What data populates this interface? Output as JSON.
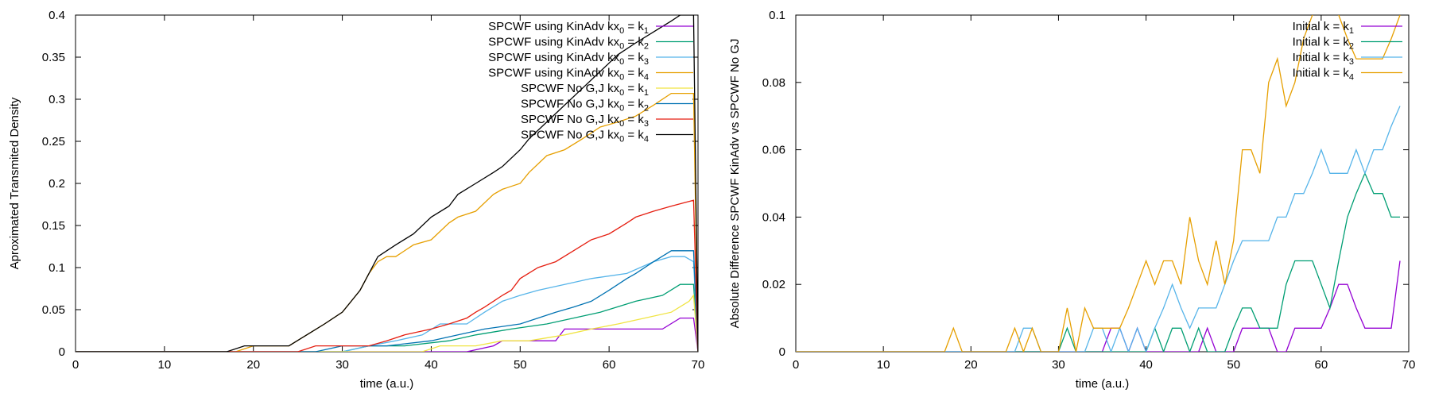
{
  "chart_data": [
    {
      "type": "line",
      "xlabel": "time (a.u.)",
      "ylabel": "Aproximated Transmited Density",
      "xlim": [
        0,
        70
      ],
      "ylim": [
        0,
        0.4
      ],
      "xticks": [
        0,
        10,
        20,
        30,
        40,
        50,
        60,
        70
      ],
      "yticks": [
        0,
        0.05,
        0.1,
        0.15,
        0.2,
        0.25,
        0.3,
        0.35,
        0.4
      ],
      "ytick_labels": [
        "0",
        "0.05",
        "0.1",
        "0.15",
        "0.2",
        "0.25",
        "0.3",
        "0.35",
        "0.4"
      ],
      "grid": false,
      "legend_position": "top-right",
      "series": [
        {
          "name": "SPCWF using KinAdv kx0 = k1",
          "label_main": "SPCWF using KinAdv kx",
          "label_sub1": "0",
          "label_mid": " = k",
          "label_sub2": "1",
          "color": "#9400d3",
          "x": [
            0,
            44,
            47,
            48,
            54,
            55,
            66,
            68,
            69.5,
            70
          ],
          "y": [
            0,
            0,
            0.007,
            0.013,
            0.013,
            0.027,
            0.027,
            0.04,
            0.04,
            0
          ]
        },
        {
          "name": "SPCWF using KinAdv kx0 = k2",
          "label_main": "SPCWF using KinAdv kx",
          "label_sub1": "0",
          "label_mid": " = k",
          "label_sub2": "2",
          "color": "#009e73",
          "x": [
            0,
            30,
            33,
            37,
            42,
            45,
            49,
            53,
            56,
            59,
            63,
            66,
            68,
            69.5,
            70
          ],
          "y": [
            0,
            0,
            0.007,
            0.007,
            0.013,
            0.02,
            0.027,
            0.033,
            0.04,
            0.047,
            0.06,
            0.067,
            0.08,
            0.08,
            0
          ]
        },
        {
          "name": "SPCWF using KinAdv kx0 = k3",
          "label_main": "SPCWF using KinAdv kx",
          "label_sub1": "0",
          "label_mid": " = k",
          "label_sub2": "3",
          "color": "#56b4e9",
          "x": [
            0,
            30,
            33,
            36,
            39,
            41,
            44,
            46,
            48,
            50,
            52,
            55,
            58,
            62,
            65,
            67,
            68.5,
            69.5,
            70
          ],
          "y": [
            0,
            0,
            0.007,
            0.013,
            0.02,
            0.033,
            0.033,
            0.047,
            0.06,
            0.067,
            0.073,
            0.08,
            0.087,
            0.093,
            0.107,
            0.113,
            0.113,
            0.107,
            0
          ]
        },
        {
          "name": "SPCWF using KinAdv kx0 = k4",
          "label_main": "SPCWF using KinAdv kx",
          "label_sub1": "0",
          "label_mid": " = k",
          "label_sub2": "4",
          "color": "#e69f00",
          "x": [
            0,
            18,
            20,
            24,
            26,
            28,
            30,
            31,
            32,
            33,
            34,
            35,
            36,
            38,
            40,
            42,
            43,
            45,
            47,
            48,
            50,
            51,
            53,
            55,
            57,
            59,
            61,
            63,
            65,
            67,
            69.5,
            70
          ],
          "y": [
            0,
            0,
            0.007,
            0.007,
            0.02,
            0.033,
            0.047,
            0.06,
            0.073,
            0.093,
            0.107,
            0.113,
            0.113,
            0.127,
            0.133,
            0.153,
            0.16,
            0.167,
            0.187,
            0.193,
            0.2,
            0.213,
            0.233,
            0.24,
            0.253,
            0.267,
            0.273,
            0.28,
            0.293,
            0.307,
            0.307,
            0
          ]
        },
        {
          "name": "SPCWF No G,J kx0 = k1",
          "label_main": "SPCWF No G,J kx",
          "label_sub1": "0",
          "label_mid": " = k",
          "label_sub2": "1",
          "color": "#f0e442",
          "x": [
            0,
            39,
            41,
            45,
            48,
            51,
            55,
            58,
            61,
            64,
            67,
            69,
            69.5,
            70
          ],
          "y": [
            0,
            0,
            0.007,
            0.007,
            0.013,
            0.013,
            0.02,
            0.027,
            0.033,
            0.04,
            0.047,
            0.06,
            0.067,
            0
          ]
        },
        {
          "name": "SPCWF No G,J kx0 = k2",
          "label_main": "SPCWF No G,J kx",
          "label_sub1": "0",
          "label_mid": " = k",
          "label_sub2": "2",
          "color": "#0072b2",
          "x": [
            0,
            27,
            30,
            35,
            40,
            43,
            46,
            50,
            52,
            54,
            56,
            58,
            60,
            62,
            63,
            65,
            67,
            69.5,
            70
          ],
          "y": [
            0,
            0,
            0.007,
            0.007,
            0.013,
            0.02,
            0.027,
            0.033,
            0.04,
            0.047,
            0.053,
            0.06,
            0.073,
            0.087,
            0.093,
            0.107,
            0.12,
            0.12,
            0
          ]
        },
        {
          "name": "SPCWF No G,J kx0 = k3",
          "label_main": "SPCWF No G,J kx",
          "label_sub1": "0",
          "label_mid": " = k",
          "label_sub2": "3",
          "color": "#e51e10",
          "x": [
            0,
            25,
            27,
            33,
            35,
            37,
            40,
            42,
            44,
            45,
            46,
            47,
            48,
            49,
            50,
            52,
            54,
            56,
            58,
            60,
            62,
            63,
            65,
            67,
            69.5,
            70
          ],
          "y": [
            0,
            0,
            0.007,
            0.007,
            0.013,
            0.02,
            0.027,
            0.033,
            0.04,
            0.047,
            0.053,
            0.06,
            0.067,
            0.073,
            0.087,
            0.1,
            0.107,
            0.12,
            0.133,
            0.14,
            0.153,
            0.16,
            0.167,
            0.173,
            0.18,
            0
          ]
        },
        {
          "name": "SPCWF No G,J kx0 = k4",
          "label_main": "SPCWF No G,J kx",
          "label_sub1": "0",
          "label_mid": " = k",
          "label_sub2": "4",
          "color": "#000000",
          "x": [
            0,
            17,
            19,
            24,
            26,
            28,
            30,
            31,
            32,
            33,
            34,
            35,
            36,
            38,
            40,
            42,
            43,
            45,
            47,
            48,
            50,
            51,
            53,
            55,
            57,
            59,
            61,
            63,
            65,
            67,
            68,
            69.5,
            70
          ],
          "y": [
            0,
            0,
            0.007,
            0.007,
            0.02,
            0.033,
            0.047,
            0.06,
            0.073,
            0.093,
            0.113,
            0.12,
            0.127,
            0.14,
            0.16,
            0.173,
            0.187,
            0.2,
            0.213,
            0.22,
            0.24,
            0.253,
            0.273,
            0.293,
            0.313,
            0.333,
            0.353,
            0.367,
            0.38,
            0.393,
            0.4,
            0.4,
            0
          ]
        }
      ]
    },
    {
      "type": "line",
      "xlabel": "time (a.u.)",
      "ylabel": "Absolute Difference SPCWF KinAdv vs SPCWF No GJ",
      "xlim": [
        0,
        70
      ],
      "ylim": [
        0,
        0.1
      ],
      "xticks": [
        0,
        10,
        20,
        30,
        40,
        50,
        60,
        70
      ],
      "yticks": [
        0,
        0.02,
        0.04,
        0.06,
        0.08,
        0.1
      ],
      "ytick_labels": [
        "0",
        "0.02",
        "0.04",
        "0.06",
        "0.08",
        "0.1"
      ],
      "grid": false,
      "legend_position": "top-right",
      "series": [
        {
          "name": "Initial k = k1",
          "label_main": "Initial k = k",
          "label_sub": "1",
          "color": "#9400d3",
          "x": [
            0,
            35,
            36,
            37,
            38,
            39,
            40,
            46,
            47,
            48,
            49,
            50,
            51,
            52,
            53,
            54,
            55,
            56,
            57,
            58,
            59,
            60,
            61,
            62,
            63,
            64,
            65,
            66,
            67,
            68,
            69
          ],
          "y": [
            0,
            0,
            0.007,
            0.007,
            0,
            0.007,
            0,
            0,
            0.007,
            0,
            0,
            0,
            0.007,
            0.007,
            0.007,
            0.007,
            0,
            0,
            0.007,
            0.007,
            0.007,
            0.007,
            0.013,
            0.02,
            0.02,
            0.013,
            0.007,
            0.007,
            0.007,
            0.007,
            0.027
          ]
        },
        {
          "name": "Initial k = k2",
          "label_main": "Initial k = k",
          "label_sub": "2",
          "color": "#009e73",
          "x": [
            0,
            30,
            31,
            32,
            33,
            40,
            41,
            42,
            43,
            44,
            45,
            46,
            47,
            48,
            49,
            50,
            51,
            52,
            53,
            54,
            55,
            56,
            57,
            58,
            59,
            60,
            61,
            62,
            63,
            64,
            65,
            66,
            67,
            68,
            69
          ],
          "y": [
            0,
            0,
            0.007,
            0,
            0,
            0,
            0.007,
            0,
            0.007,
            0.007,
            0,
            0.007,
            0,
            0,
            0,
            0.007,
            0.013,
            0.013,
            0.007,
            0.007,
            0.007,
            0.02,
            0.027,
            0.027,
            0.027,
            0.02,
            0.013,
            0.027,
            0.04,
            0.047,
            0.053,
            0.047,
            0.047,
            0.04,
            0.04
          ]
        },
        {
          "name": "Initial k = k3",
          "label_main": "Initial k = k",
          "label_sub": "3",
          "color": "#56b4e9",
          "x": [
            0,
            25,
            26,
            27,
            28,
            33,
            34,
            35,
            36,
            37,
            38,
            39,
            40,
            41,
            42,
            43,
            44,
            45,
            46,
            47,
            48,
            49,
            50,
            51,
            52,
            53,
            54,
            55,
            56,
            57,
            58,
            59,
            60,
            61,
            62,
            63,
            64,
            65,
            66,
            67,
            68,
            69
          ],
          "y": [
            0,
            0,
            0.007,
            0.007,
            0,
            0,
            0.007,
            0.007,
            0,
            0.007,
            0,
            0.007,
            0,
            0.007,
            0.013,
            0.02,
            0.013,
            0.007,
            0.013,
            0.013,
            0.013,
            0.02,
            0.027,
            0.033,
            0.033,
            0.033,
            0.033,
            0.04,
            0.04,
            0.047,
            0.047,
            0.053,
            0.06,
            0.053,
            0.053,
            0.053,
            0.06,
            0.053,
            0.06,
            0.06,
            0.067,
            0.073
          ]
        },
        {
          "name": "Initial k = k4",
          "label_main": "Initial k = k",
          "label_sub": "4",
          "color": "#e69f00",
          "x": [
            0,
            17,
            18,
            19,
            24,
            25,
            26,
            27,
            28,
            30,
            31,
            32,
            33,
            34,
            35,
            36,
            37,
            38,
            39,
            40,
            41,
            42,
            43,
            44,
            45,
            46,
            47,
            48,
            49,
            50,
            51,
            52,
            53,
            54,
            55,
            56,
            57,
            58,
            59,
            60,
            61,
            62,
            63,
            64,
            65,
            66,
            67,
            68,
            69
          ],
          "y": [
            0,
            0,
            0.007,
            0,
            0,
            0.007,
            0,
            0.007,
            0,
            0,
            0.013,
            0,
            0.013,
            0.007,
            0.007,
            0.007,
            0.007,
            0.013,
            0.02,
            0.027,
            0.02,
            0.027,
            0.027,
            0.02,
            0.04,
            0.027,
            0.02,
            0.033,
            0.02,
            0.033,
            0.06,
            0.06,
            0.053,
            0.08,
            0.087,
            0.073,
            0.08,
            0.093,
            0.1,
            0.12,
            0.107,
            0.1,
            0.093,
            0.087,
            0.087,
            0.087,
            0.087,
            0.093,
            0.1
          ]
        }
      ]
    }
  ]
}
